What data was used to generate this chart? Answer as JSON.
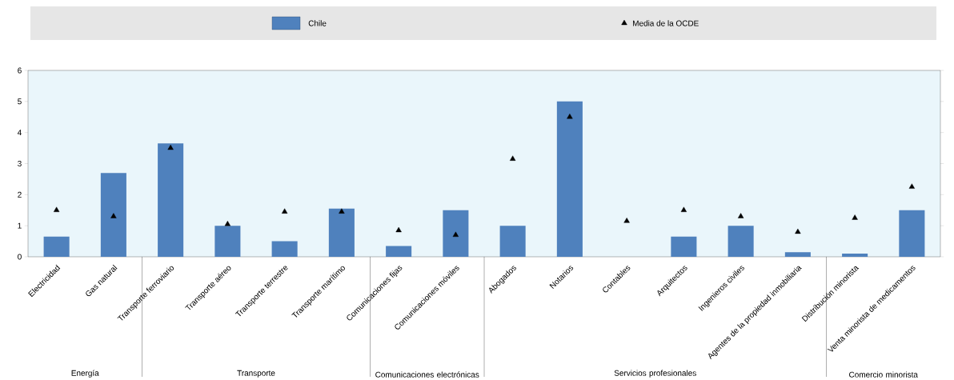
{
  "chart_data": {
    "type": "bar",
    "categories": [
      "Electricidad",
      "Gas natural",
      "Transporte ferroviario",
      "Transporte aéreo",
      "Transporte terrestre",
      "Transporte marítimo",
      "Comunicaciones fijas",
      "Comunicaciones móviles",
      "Abogados",
      "Notarios",
      "Contables",
      "Arquitectos",
      "Ingenieros civiles",
      "Agentes de la propiedad inmobiliaria",
      "Distribución minorista",
      "Venta minorista de medicamentos"
    ],
    "series": [
      {
        "name": "Chile",
        "type": "bar",
        "color": "#4f81bd",
        "values": [
          0.65,
          2.7,
          3.65,
          1.0,
          0.5,
          1.55,
          0.35,
          1.5,
          1.0,
          5.0,
          0,
          0.65,
          1.0,
          0.15,
          0.1,
          1.5
        ]
      },
      {
        "name": "Media de la OCDE",
        "type": "scatter",
        "color": "#000000",
        "marker": "triangle",
        "values": [
          1.5,
          1.3,
          3.5,
          1.05,
          1.45,
          1.45,
          0.85,
          0.7,
          3.15,
          4.5,
          1.15,
          1.5,
          1.3,
          0.8,
          1.25,
          2.25
        ]
      }
    ],
    "ylim": [
      0,
      6
    ],
    "yticks": [
      0,
      1,
      2,
      3,
      4,
      5,
      6
    ],
    "legend": "top",
    "annotations": [
      "Energía",
      "Transporte",
      "Comunicaciones electrónicas",
      "Servicios profesionales",
      "Comercio minorista"
    ]
  }
}
